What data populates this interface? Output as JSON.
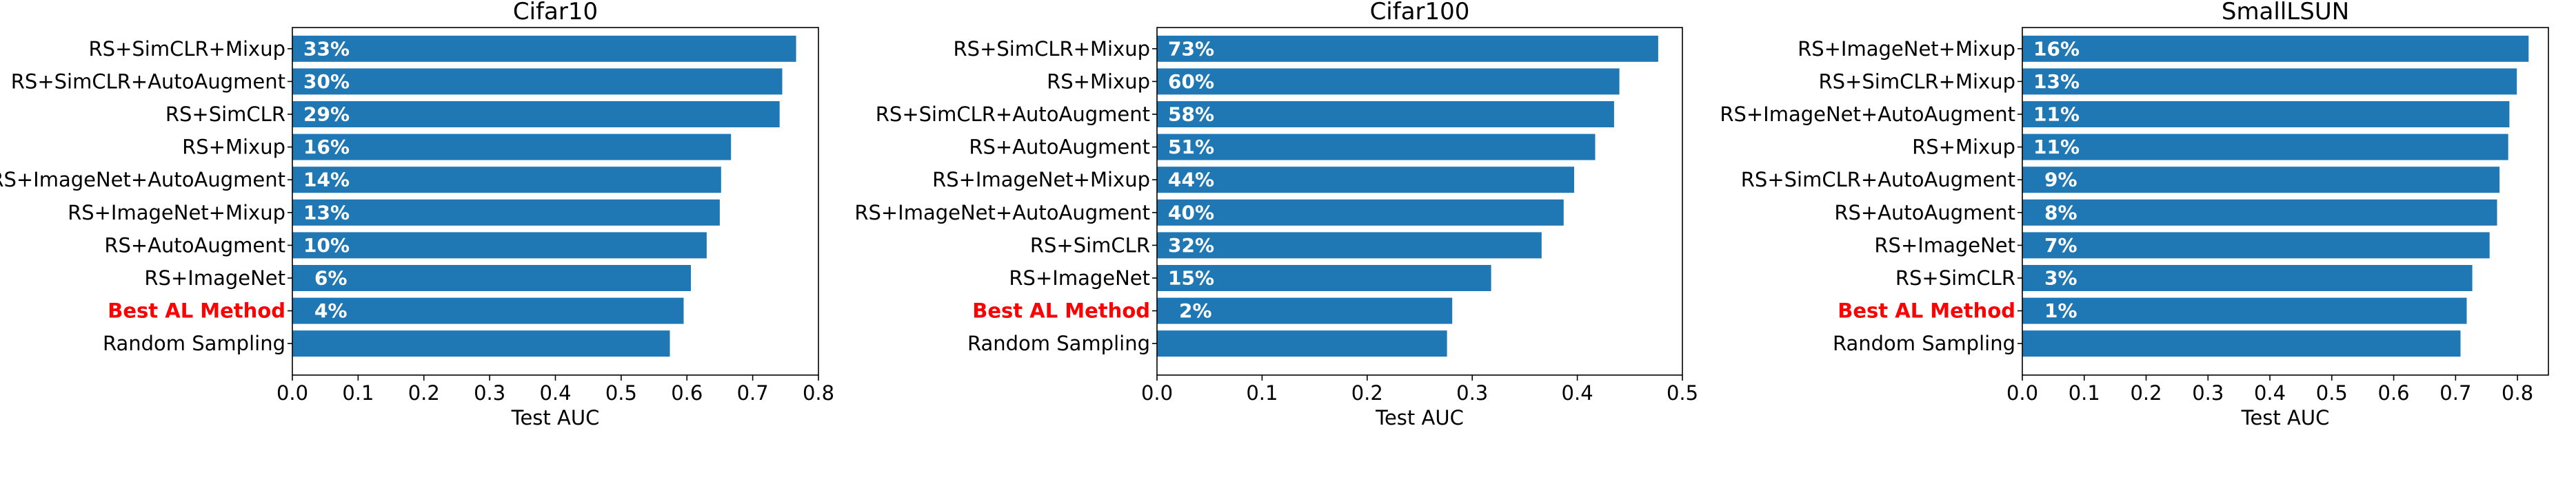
{
  "chart_data": [
    {
      "type": "bar",
      "orientation": "horizontal",
      "title": "Cifar10",
      "xlabel": "Test AUC",
      "ylabel": "",
      "xlim": [
        0,
        0.8
      ],
      "xticks": [
        "0.0",
        "0.1",
        "0.2",
        "0.3",
        "0.4",
        "0.5",
        "0.6",
        "0.7",
        "0.8"
      ],
      "categories": [
        "RS+SimCLR+Mixup",
        "RS+SimCLR+AutoAugment",
        "RS+SimCLR",
        "RS+Mixup",
        "RS+ImageNet+AutoAugment",
        "RS+ImageNet+Mixup",
        "RS+AutoAugment",
        "RS+ImageNet",
        "Best AL Method",
        "Random Sampling"
      ],
      "values": [
        0.766,
        0.745,
        0.741,
        0.667,
        0.652,
        0.65,
        0.63,
        0.606,
        0.595,
        0.574
      ],
      "bar_labels": [
        "33%",
        "30%",
        "29%",
        "16%",
        "14%",
        "13%",
        "10%",
        "6%",
        "4%",
        ""
      ],
      "highlight_category": "Best AL Method",
      "grid": false
    },
    {
      "type": "bar",
      "orientation": "horizontal",
      "title": "Cifar100",
      "xlabel": "Test AUC",
      "ylabel": "",
      "xlim": [
        0,
        0.5
      ],
      "xticks": [
        "0.0",
        "0.1",
        "0.2",
        "0.3",
        "0.4",
        "0.5"
      ],
      "categories": [
        "RS+SimCLR+Mixup",
        "RS+Mixup",
        "RS+SimCLR+AutoAugment",
        "RS+AutoAugment",
        "RS+ImageNet+Mixup",
        "RS+ImageNet+AutoAugment",
        "RS+SimCLR",
        "RS+ImageNet",
        "Best AL Method",
        "Random Sampling"
      ],
      "values": [
        0.477,
        0.44,
        0.435,
        0.417,
        0.397,
        0.387,
        0.366,
        0.318,
        0.281,
        0.276
      ],
      "bar_labels": [
        "73%",
        "60%",
        "58%",
        "51%",
        "44%",
        "40%",
        "32%",
        "15%",
        "2%",
        ""
      ],
      "highlight_category": "Best AL Method",
      "grid": false
    },
    {
      "type": "bar",
      "orientation": "horizontal",
      "title": "SmallLSUN",
      "xlabel": "Test AUC",
      "ylabel": "",
      "xlim": [
        0,
        0.85
      ],
      "xticks": [
        "0.0",
        "0.1",
        "0.2",
        "0.3",
        "0.4",
        "0.5",
        "0.6",
        "0.7",
        "0.8"
      ],
      "categories": [
        "RS+ImageNet+Mixup",
        "RS+SimCLR+Mixup",
        "RS+ImageNet+AutoAugment",
        "RS+Mixup",
        "RS+SimCLR+AutoAugment",
        "RS+AutoAugment",
        "RS+ImageNet",
        "RS+SimCLR",
        "Best AL Method",
        "Random Sampling"
      ],
      "values": [
        0.818,
        0.799,
        0.787,
        0.785,
        0.771,
        0.767,
        0.755,
        0.727,
        0.718,
        0.708
      ],
      "bar_labels": [
        "16%",
        "13%",
        "11%",
        "11%",
        "9%",
        "8%",
        "7%",
        "3%",
        "1%",
        ""
      ],
      "highlight_category": "Best AL Method",
      "grid": false
    }
  ],
  "colors": {
    "bar": "#1f77b4",
    "bar_label": "#ffffff",
    "highlight_label": "#ff0000",
    "text": "#000000",
    "axis": "#000000"
  }
}
